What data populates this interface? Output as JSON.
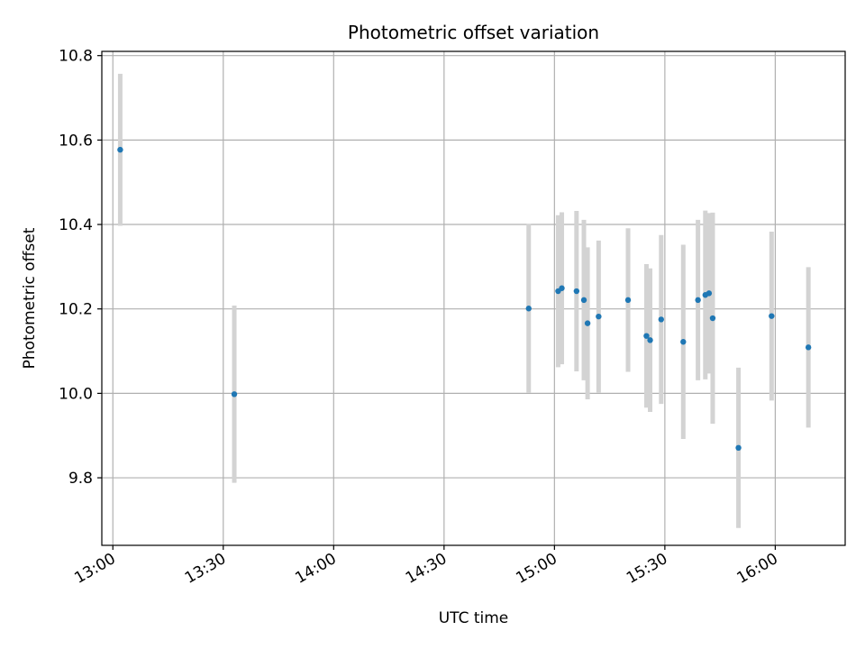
{
  "chart_data": {
    "type": "scatter",
    "title": "Photometric offset variation",
    "xlabel": "UTC time",
    "ylabel": "Photometric offset",
    "x_ticks": [
      "13:00",
      "13:30",
      "14:00",
      "14:30",
      "15:00",
      "15:30",
      "16:00"
    ],
    "y_ticks": [
      "9.8",
      "10.0",
      "10.2",
      "10.4",
      "10.6",
      "10.8"
    ],
    "xlim": [
      "12:57",
      "16:19"
    ],
    "ylim": [
      9.64,
      10.81
    ],
    "grid": true,
    "colors": {
      "point": "#1f77b4",
      "errorbar": "#d3d3d3",
      "grid": "#b0b0b0"
    },
    "points": [
      {
        "x": "13:02",
        "y": 10.577,
        "err": 0.18
      },
      {
        "x": "13:33",
        "y": 9.998,
        "err": 0.21
      },
      {
        "x": "14:53",
        "y": 10.201,
        "err": 0.2
      },
      {
        "x": "15:01",
        "y": 10.242,
        "err": 0.18
      },
      {
        "x": "15:02",
        "y": 10.249,
        "err": 0.18
      },
      {
        "x": "15:06",
        "y": 10.242,
        "err": 0.19
      },
      {
        "x": "15:08",
        "y": 10.221,
        "err": 0.19
      },
      {
        "x": "15:09",
        "y": 10.166,
        "err": 0.18
      },
      {
        "x": "15:12",
        "y": 10.182,
        "err": 0.18
      },
      {
        "x": "15:20",
        "y": 10.221,
        "err": 0.17
      },
      {
        "x": "15:25",
        "y": 10.136,
        "err": 0.17
      },
      {
        "x": "15:26",
        "y": 10.126,
        "err": 0.17
      },
      {
        "x": "15:29",
        "y": 10.175,
        "err": 0.2
      },
      {
        "x": "15:35",
        "y": 10.122,
        "err": 0.23
      },
      {
        "x": "15:39",
        "y": 10.221,
        "err": 0.19
      },
      {
        "x": "15:41",
        "y": 10.233,
        "err": 0.2
      },
      {
        "x": "15:42",
        "y": 10.237,
        "err": 0.19
      },
      {
        "x": "15:43",
        "y": 10.178,
        "err": 0.25
      },
      {
        "x": "15:50",
        "y": 9.871,
        "err": 0.19
      },
      {
        "x": "15:59",
        "y": 10.183,
        "err": 0.2
      },
      {
        "x": "16:09",
        "y": 10.109,
        "err": 0.19
      }
    ]
  }
}
